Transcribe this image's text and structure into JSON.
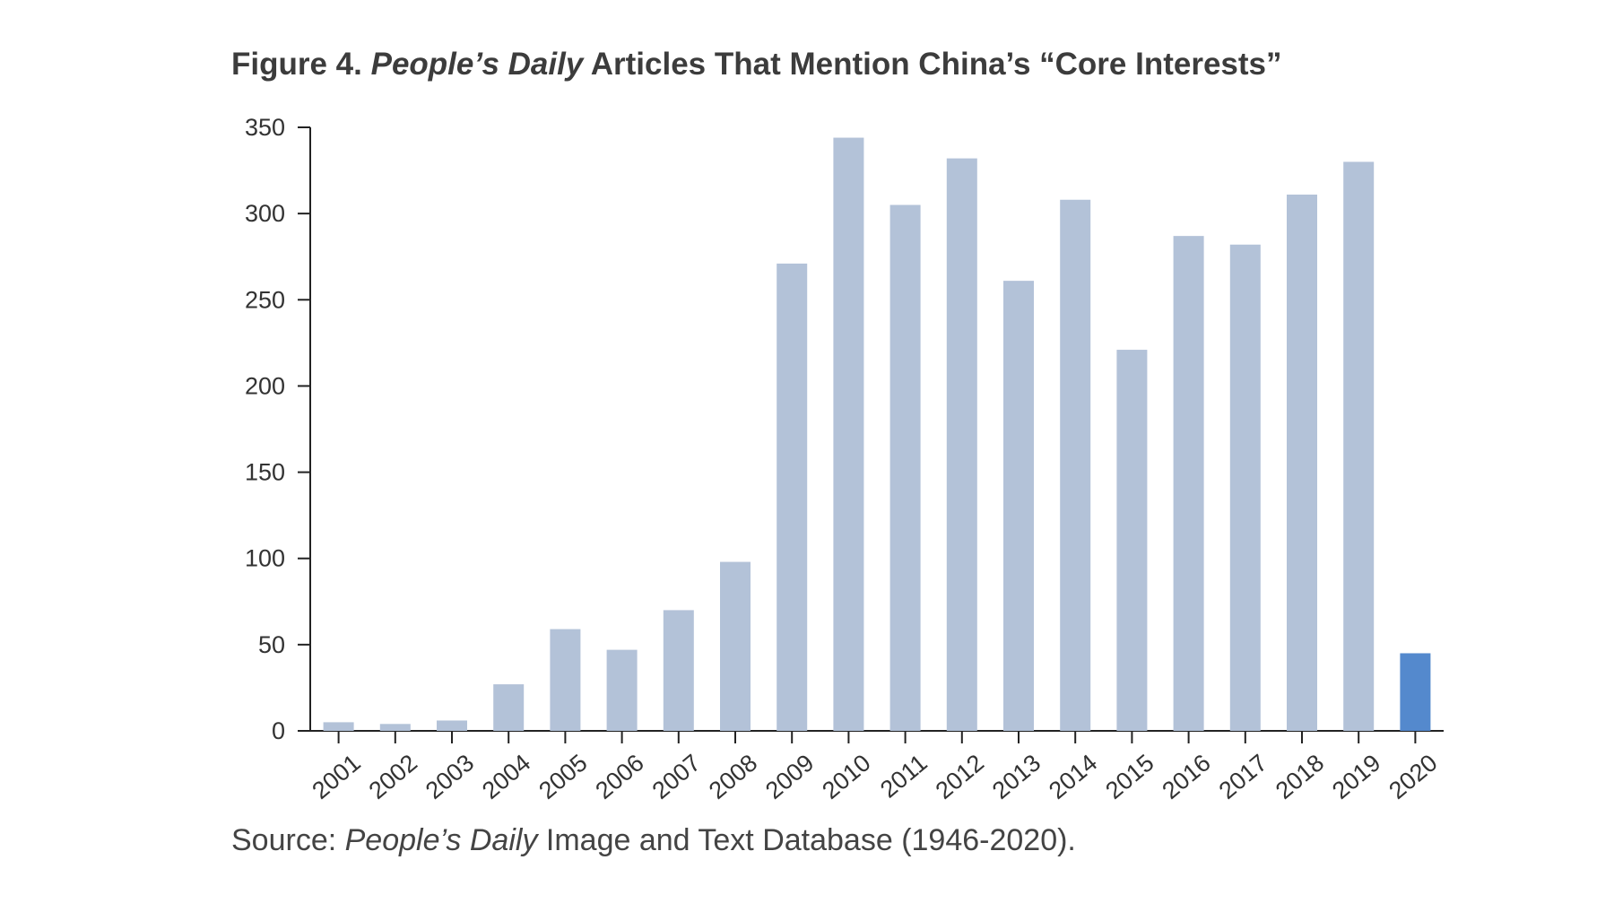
{
  "title": {
    "prefix": "Figure 4. ",
    "italic": "People’s Daily",
    "suffix": " Articles That Mention China’s “Core Interests”"
  },
  "source": {
    "prefix": "Source: ",
    "italic": "People’s Daily",
    "suffix": " Image and Text Database (1946-2020)."
  },
  "colors": {
    "bar": "#b3c2d8",
    "highlight_bar": "#5489cd",
    "axis": "#222222"
  },
  "chart_data": {
    "type": "bar",
    "categories": [
      "2001",
      "2002",
      "2003",
      "2004",
      "2005",
      "2006",
      "2007",
      "2008",
      "2009",
      "2010",
      "2011",
      "2012",
      "2013",
      "2014",
      "2015",
      "2016",
      "2017",
      "2018",
      "2019",
      "2020"
    ],
    "values": [
      5,
      4,
      6,
      27,
      59,
      47,
      70,
      98,
      271,
      344,
      305,
      332,
      261,
      308,
      221,
      287,
      282,
      311,
      330,
      45
    ],
    "highlight_category": "2020",
    "yticks": [
      0,
      50,
      100,
      150,
      200,
      250,
      300,
      350
    ],
    "ylim": [
      0,
      350
    ],
    "grid": false
  }
}
